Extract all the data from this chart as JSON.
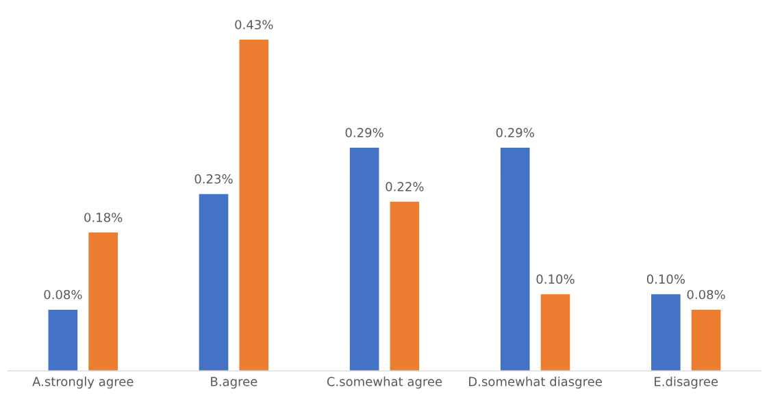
{
  "chart_data": {
    "type": "bar",
    "categories": [
      "A.strongly agree",
      "B.agree",
      "C.somewhat agree",
      "D.somewhat diasgree",
      "E.disagree"
    ],
    "series": [
      {
        "color": "#4472c4",
        "values": [
          0.08,
          0.23,
          0.29,
          0.29,
          0.1
        ],
        "value_labels": [
          "0.08%",
          "0.23%",
          "0.29%",
          "0.29%",
          "0.10%"
        ]
      },
      {
        "color": "#ed7d31",
        "values": [
          0.18,
          0.43,
          0.22,
          0.1,
          0.08
        ],
        "value_labels": [
          "0.18%",
          "0.43%",
          "0.22%",
          "0.10%",
          "0.08%"
        ]
      }
    ]
  }
}
